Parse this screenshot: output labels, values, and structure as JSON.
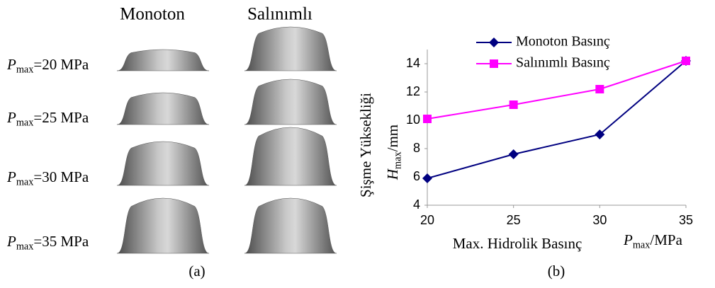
{
  "panel_a": {
    "columns": [
      "Monoton",
      "Salınımlı"
    ],
    "rows": [
      {
        "symbol": "P",
        "subscript": "max",
        "text": "=20 MPa"
      },
      {
        "symbol": "P",
        "subscript": "max",
        "text": "=25 MPa"
      },
      {
        "symbol": "P",
        "subscript": "max",
        "text": "=30 MPa"
      },
      {
        "symbol": "P",
        "subscript": "max",
        "text": "=35 MPa"
      }
    ],
    "caption": "(a)"
  },
  "chart_data": {
    "type": "line",
    "caption": "(b)",
    "x_label": "Max. Hidrolik Basınç",
    "x_unit_label": {
      "symbol": "P",
      "subscript": "max",
      "unit": "/MPa"
    },
    "y_label": "Şişme Yüksekliği",
    "y_unit_label": {
      "symbol": "H",
      "subscript": "max",
      "unit": "/mm"
    },
    "x": [
      20,
      25,
      30,
      35
    ],
    "xlim": [
      20,
      35
    ],
    "xticks": [
      20,
      25,
      30,
      35
    ],
    "ylim": [
      4,
      15
    ],
    "yticks": [
      4,
      6,
      8,
      10,
      12,
      14
    ],
    "series": [
      {
        "name": "Monoton Basınç",
        "color": "#000080",
        "marker": "diamond",
        "values": [
          5.9,
          7.6,
          9.0,
          14.2
        ]
      },
      {
        "name": "Salınımlı Basınç",
        "color": "#ff00ff",
        "marker": "square",
        "values": [
          10.1,
          11.1,
          12.2,
          14.2
        ]
      }
    ]
  }
}
